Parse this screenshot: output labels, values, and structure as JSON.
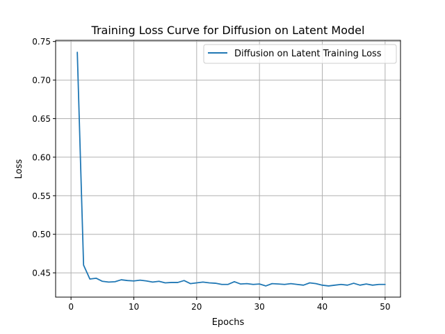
{
  "chart_data": {
    "type": "line",
    "title": "Training Loss Curve for Diffusion on Latent Model",
    "xlabel": "Epochs",
    "ylabel": "Loss",
    "xlim": [
      -2.45,
      52.45
    ],
    "ylim": [
      0.4185,
      0.7515
    ],
    "xticks": [
      0,
      10,
      20,
      30,
      40,
      50
    ],
    "yticks": [
      0.45,
      0.5,
      0.55,
      0.6,
      0.65,
      0.7,
      0.75
    ],
    "grid": true,
    "legend_position": "top-right",
    "series": [
      {
        "name": "Diffusion on Latent Training Loss",
        "color": "#1f77b4",
        "x": [
          1,
          2,
          3,
          4,
          5,
          6,
          7,
          8,
          9,
          10,
          11,
          12,
          13,
          14,
          15,
          16,
          17,
          18,
          19,
          20,
          21,
          22,
          23,
          24,
          25,
          26,
          27,
          28,
          29,
          30,
          31,
          32,
          33,
          34,
          35,
          36,
          37,
          38,
          39,
          40,
          41,
          42,
          43,
          44,
          45,
          46,
          47,
          48,
          49,
          50
        ],
        "values": [
          0.736,
          0.46,
          0.442,
          0.443,
          0.439,
          0.438,
          0.4385,
          0.441,
          0.44,
          0.4395,
          0.4405,
          0.4395,
          0.438,
          0.439,
          0.437,
          0.4375,
          0.4375,
          0.44,
          0.436,
          0.437,
          0.438,
          0.437,
          0.4365,
          0.435,
          0.435,
          0.4385,
          0.4355,
          0.436,
          0.435,
          0.4355,
          0.433,
          0.436,
          0.4355,
          0.435,
          0.436,
          0.435,
          0.434,
          0.437,
          0.436,
          0.434,
          0.433,
          0.434,
          0.435,
          0.434,
          0.4365,
          0.434,
          0.4355,
          0.434,
          0.435,
          0.435
        ]
      }
    ]
  }
}
